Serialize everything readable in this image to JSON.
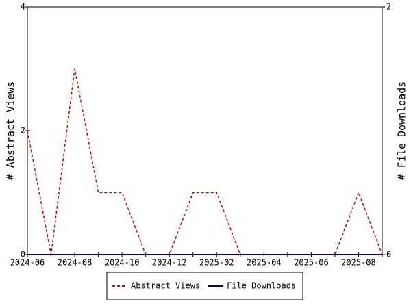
{
  "chart_data": {
    "type": "line",
    "ylabel": "# Abstract Views",
    "y2label": "# File Downloads",
    "categories": [
      "2024-06",
      null,
      "2024-08",
      null,
      "2024-10",
      null,
      "2024-12",
      null,
      "2025-02",
      null,
      "2025-04",
      null,
      "2025-06",
      null,
      "2025-08",
      null
    ],
    "series": [
      {
        "name": "Abstract Views",
        "color": "#cc0000",
        "line_style": "dashed",
        "values": [
          2,
          0,
          3,
          1,
          1,
          0,
          0,
          1,
          1,
          0,
          0,
          0,
          0,
          0,
          1,
          0
        ]
      },
      {
        "name": "File Downloads",
        "color": "#000099",
        "line_style": "solid",
        "axis": "y2",
        "values": [
          0,
          0,
          0,
          0,
          0,
          0,
          0,
          0,
          0,
          0,
          0,
          0,
          0,
          0,
          0,
          0
        ]
      }
    ],
    "ylim": [
      0,
      4
    ],
    "yticks": [
      0,
      2,
      4
    ],
    "y2lim": [
      0,
      2
    ],
    "y2ticks": [
      0,
      2
    ],
    "legend": "bottom"
  }
}
